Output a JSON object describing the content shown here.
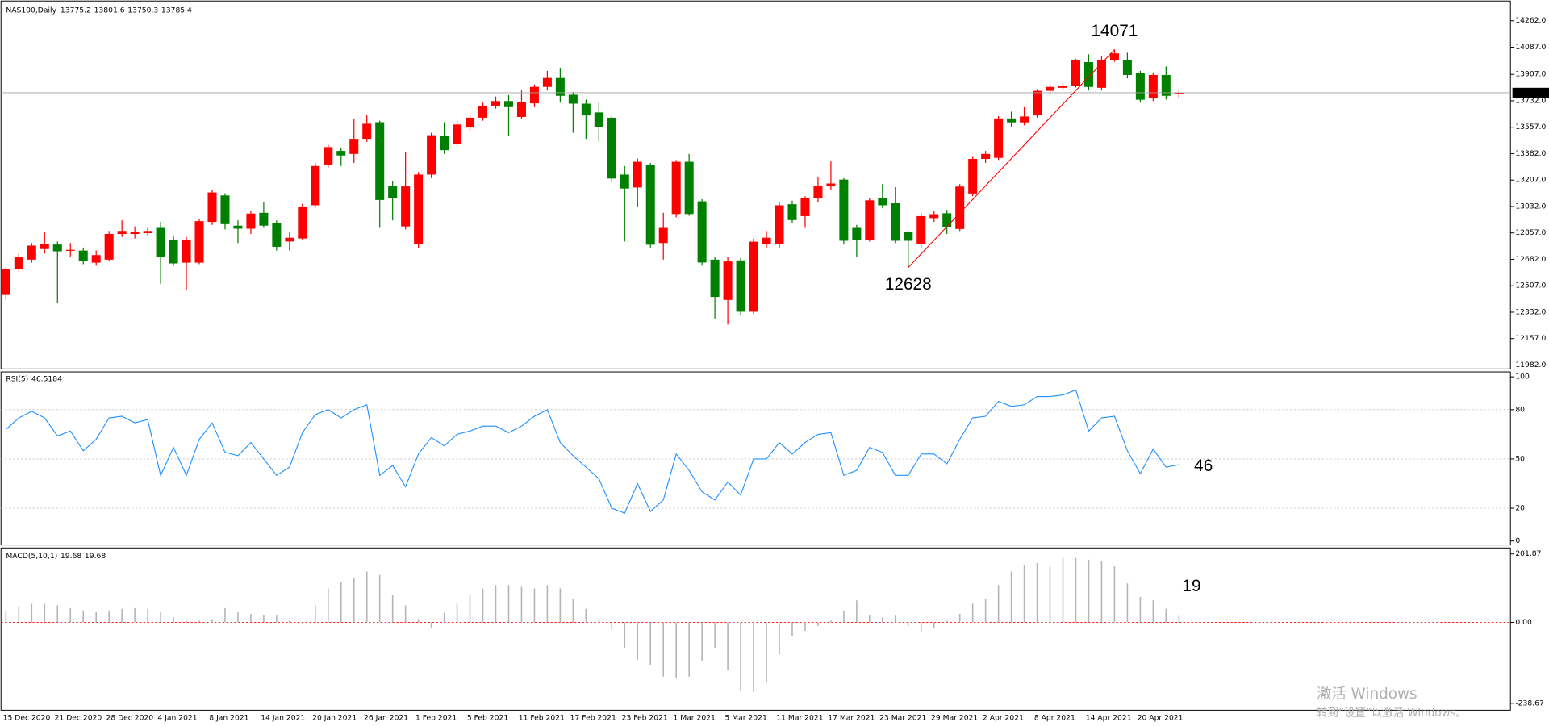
{
  "chart_data": {
    "type": "candlestick",
    "symbol": "NAS100,Daily",
    "categories": [
      "15 Dec 2020",
      null,
      null,
      null,
      "21 Dec 2020",
      null,
      null,
      null,
      "28 Dec 2020",
      null,
      null,
      null,
      "4 Jan 2021",
      null,
      null,
      null,
      "8 Jan 2021",
      null,
      null,
      null,
      "14 Jan 2021",
      null,
      null,
      null,
      "20 Jan 2021",
      null,
      null,
      null,
      "26 Jan 2021",
      null,
      null,
      null,
      "1 Feb 2021",
      null,
      null,
      null,
      "5 Feb 2021",
      null,
      null,
      null,
      "11 Feb 2021",
      null,
      null,
      null,
      "17 Feb 2021",
      null,
      null,
      null,
      "23 Feb 2021",
      null,
      null,
      null,
      "1 Mar 2021",
      null,
      null,
      null,
      "5 Mar 2021",
      null,
      null,
      null,
      "11 Mar 2021",
      null,
      null,
      null,
      "17 Mar 2021",
      null,
      null,
      null,
      "23 Mar 2021",
      null,
      null,
      null,
      "29 Mar 2021",
      null,
      null,
      null,
      "2 Apr 2021",
      null,
      null,
      null,
      "8 Apr 2021",
      null,
      null,
      null,
      "14 Apr 2021",
      null,
      null,
      null,
      "20 Apr 2021",
      null,
      null,
      null
    ],
    "open": [
      12446,
      12616,
      12680,
      12750,
      12780,
      12740,
      12740,
      12660,
      12680,
      12850,
      12850,
      12855,
      12890,
      12810,
      12660,
      12660,
      12930,
      13105,
      12905,
      12885,
      12990,
      12925,
      12800,
      12820,
      13040,
      13310,
      13400,
      13380,
      13480,
      13590,
      13165,
      12900,
      12785,
      13243,
      13500,
      13445,
      13555,
      13620,
      13700,
      13730,
      13625,
      13715,
      13824,
      13883,
      13772,
      13713,
      13655,
      13620,
      13243,
      13158,
      13308,
      12790,
      12982,
      13328,
      13066,
      12680,
      12413,
      12675,
      12335,
      12785,
      12785,
      13047,
      12968,
      13086,
      13165,
      13210,
      12890,
      12812,
      13086,
      13053,
      12864,
      12785,
      12955,
      12987,
      12883,
      13118,
      13347,
      13354,
      13615,
      13589,
      13635,
      13798,
      13818,
      13830,
      13988,
      13818,
      14001,
      14001,
      13916,
      13752,
      13903,
      13775.2
    ],
    "high": [
      12630,
      12720,
      12790,
      12860,
      12800,
      12790,
      12760,
      12740,
      12870,
      12940,
      12900,
      12890,
      12930,
      12840,
      12830,
      12950,
      13140,
      13120,
      12940,
      13000,
      13060,
      12940,
      12860,
      13050,
      13320,
      13440,
      13420,
      13610,
      13640,
      13600,
      13200,
      13390,
      13260,
      13520,
      13590,
      13600,
      13640,
      13720,
      13760,
      13770,
      13800,
      13840,
      13930,
      13950,
      13790,
      13740,
      13720,
      13630,
      13300,
      13350,
      13320,
      12990,
      13340,
      13380,
      13080,
      12700,
      12700,
      12690,
      12820,
      12870,
      13060,
      13070,
      13100,
      13230,
      13330,
      13220,
      12910,
      13090,
      13180,
      13160,
      12870,
      12990,
      13000,
      13010,
      13180,
      13360,
      13400,
      13630,
      13660,
      13690,
      13810,
      13840,
      13850,
      14010,
      14040,
      14030,
      14071,
      14050,
      13930,
      13920,
      13960,
      13801.6
    ],
    "low": [
      12410,
      12600,
      12660,
      12720,
      12390,
      12700,
      12650,
      12640,
      12670,
      12830,
      12820,
      12840,
      12520,
      12640,
      12480,
      12650,
      12910,
      12880,
      12790,
      12850,
      12890,
      12740,
      12740,
      12810,
      13030,
      13290,
      13300,
      13320,
      13460,
      12890,
      12940,
      12880,
      12760,
      13220,
      13380,
      13430,
      13530,
      13600,
      13680,
      13500,
      13610,
      13690,
      13800,
      13720,
      13520,
      13480,
      13460,
      13190,
      12800,
      13030,
      12760,
      12680,
      12960,
      12970,
      12640,
      12290,
      12250,
      12310,
      12320,
      12760,
      12760,
      12920,
      12890,
      13060,
      13140,
      12780,
      12700,
      12800,
      13020,
      12790,
      12628,
      12760,
      12930,
      12850,
      12870,
      13100,
      13320,
      13340,
      13560,
      13570,
      13620,
      13770,
      13800,
      13820,
      13800,
      13800,
      13990,
      13880,
      13720,
      13730,
      13740,
      13750.3
    ],
    "close": [
      12616,
      12695,
      12773,
      12785,
      12735,
      12745,
      12670,
      12710,
      12850,
      12870,
      12865,
      12870,
      12695,
      12655,
      12810,
      12935,
      13125,
      12915,
      12885,
      12985,
      12905,
      12765,
      12825,
      13030,
      13300,
      13425,
      13370,
      13480,
      13580,
      13075,
      13090,
      13165,
      13243,
      13504,
      13405,
      13575,
      13620,
      13700,
      13730,
      13690,
      13725,
      13824,
      13883,
      13765,
      13713,
      13635,
      13556,
      13217,
      13151,
      13328,
      12779,
      12890,
      13328,
      12982,
      12661,
      12433,
      12668,
      12335,
      12799,
      12825,
      13040,
      12942,
      13086,
      13171,
      13184,
      12805,
      12812,
      13073,
      13040,
      12805,
      12805,
      12968,
      12981,
      12896,
      13164,
      13347,
      13380,
      13615,
      13589,
      13628,
      13798,
      13824,
      13830,
      14001,
      13824,
      14001,
      14046,
      13903,
      13739,
      13903,
      13765,
      13785.4
    ],
    "up_color": "#ff0000",
    "down_color": "#008000",
    "ylim": [
      11956,
      14393
    ],
    "yticks": [
      {
        "value": 14262,
        "label": "14262.0"
      },
      {
        "value": 14087,
        "label": "14087.0"
      },
      {
        "value": 13907,
        "label": "13907.0"
      },
      {
        "value": 13732,
        "label": "13732.0"
      },
      {
        "value": 13557,
        "label": "13557.0"
      },
      {
        "value": 13382,
        "label": "13382.0"
      },
      {
        "value": 13207,
        "label": "13207.0"
      },
      {
        "value": 13032,
        "label": "13032.0"
      },
      {
        "value": 12857,
        "label": "12857.0"
      },
      {
        "value": 12682,
        "label": "12682.0"
      },
      {
        "value": 12507,
        "label": "12507.0"
      },
      {
        "value": 12332,
        "label": "12332.0"
      },
      {
        "value": 12157,
        "label": "12157.0"
      },
      {
        "value": 11982,
        "label": "11982.0"
      }
    ],
    "annotations": [
      14071,
      12628
    ],
    "annotation_color": "#ff0000",
    "indicators": [
      {
        "type": "line",
        "name": "RSI(5)",
        "color": "#1e90ff",
        "grid_color": "#c8c8c8",
        "ylim": [
          -2.4,
          103
        ],
        "yticks": [
          100,
          80,
          50,
          20,
          0
        ],
        "annotation": 46,
        "values": [
          68,
          75,
          79,
          75,
          64,
          67,
          55,
          62,
          75,
          76,
          72,
          74,
          40,
          57,
          40,
          62,
          72,
          54,
          52,
          60,
          50,
          40,
          45,
          66,
          77,
          80,
          75,
          80,
          83,
          40,
          46,
          33,
          53,
          63,
          58,
          65,
          67,
          70,
          70,
          66,
          70,
          76,
          80,
          60,
          52,
          45,
          38,
          20,
          17,
          35,
          18,
          25,
          53,
          43,
          30,
          25,
          36,
          28,
          50,
          50,
          60,
          53,
          60,
          65,
          66,
          40,
          43,
          57,
          54,
          40,
          40,
          53,
          53,
          47,
          62,
          75,
          76,
          85,
          82,
          83,
          88,
          88,
          89,
          92,
          67,
          75,
          76,
          55,
          41,
          56,
          45,
          46.5184
        ]
      },
      {
        "type": "bar",
        "name": "MACD(5,10,1)",
        "color": "#b4b4b4",
        "grid_color": "#ff0000",
        "ylim": [
          -259,
          219.5
        ],
        "yticks": [
          201.87,
          {
            "value": 0,
            "label": "0.00"
          },
          -238.67
        ],
        "annotation": 19,
        "values": [
          35,
          48,
          55,
          55,
          50,
          42,
          35,
          30,
          35,
          40,
          42,
          40,
          30,
          15,
          5,
          5,
          10,
          42,
          30,
          25,
          22,
          20,
          5,
          -5,
          50,
          100,
          120,
          130,
          150,
          140,
          80,
          50,
          10,
          -15,
          28,
          55,
          80,
          100,
          110,
          110,
          105,
          100,
          110,
          100,
          70,
          40,
          10,
          -20,
          -75,
          -110,
          -125,
          -160,
          -165,
          -160,
          -115,
          -75,
          -140,
          -200,
          -205,
          -175,
          -95,
          -40,
          -25,
          -10,
          5,
          35,
          65,
          20,
          15,
          20,
          -10,
          -30,
          -15,
          5,
          25,
          55,
          70,
          110,
          150,
          170,
          175,
          165,
          190,
          190,
          185,
          180,
          165,
          115,
          75,
          65,
          40,
          19.68
        ]
      }
    ]
  },
  "watermark": {
    "title": "激活 Windows",
    "subtitle": "转到“设置”以激活 Windows。"
  }
}
